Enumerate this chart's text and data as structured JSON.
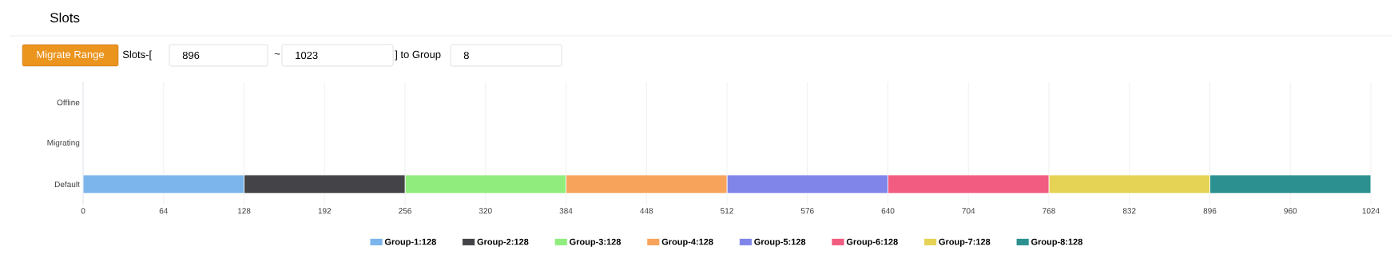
{
  "chart_data": {
    "type": "bar",
    "orientation": "horizontal",
    "stacked": true,
    "title": "Slots",
    "annotations": [
      "Migrate Range",
      "Slots-[",
      "896",
      "~",
      "1023",
      "] to Group",
      "8"
    ],
    "categories": [
      "Offline",
      "Migrating",
      "Default"
    ],
    "series": [
      {
        "name": "Group-1:128",
        "color": "#7cb5ec",
        "values": [
          null,
          null,
          128
        ]
      },
      {
        "name": "Group-2:128",
        "color": "#434348",
        "values": [
          null,
          null,
          128
        ]
      },
      {
        "name": "Group-3:128",
        "color": "#90ed7d",
        "values": [
          null,
          null,
          128
        ]
      },
      {
        "name": "Group-4:128",
        "color": "#f7a35c",
        "values": [
          null,
          null,
          128
        ]
      },
      {
        "name": "Group-5:128",
        "color": "#8085e9",
        "values": [
          null,
          null,
          128
        ]
      },
      {
        "name": "Group-6:128",
        "color": "#f15c80",
        "values": [
          null,
          null,
          128
        ]
      },
      {
        "name": "Group-7:128",
        "color": "#e4d354",
        "values": [
          null,
          null,
          128
        ]
      },
      {
        "name": "Group-8:128",
        "color": "#2b908f",
        "values": [
          null,
          null,
          128
        ]
      }
    ],
    "xlim": [
      0,
      1024
    ],
    "xticks": [
      0,
      64,
      128,
      192,
      256,
      320,
      384,
      448,
      512,
      576,
      640,
      704,
      768,
      832,
      896,
      960,
      1024
    ],
    "grid": "x",
    "legend": "bottom"
  }
}
